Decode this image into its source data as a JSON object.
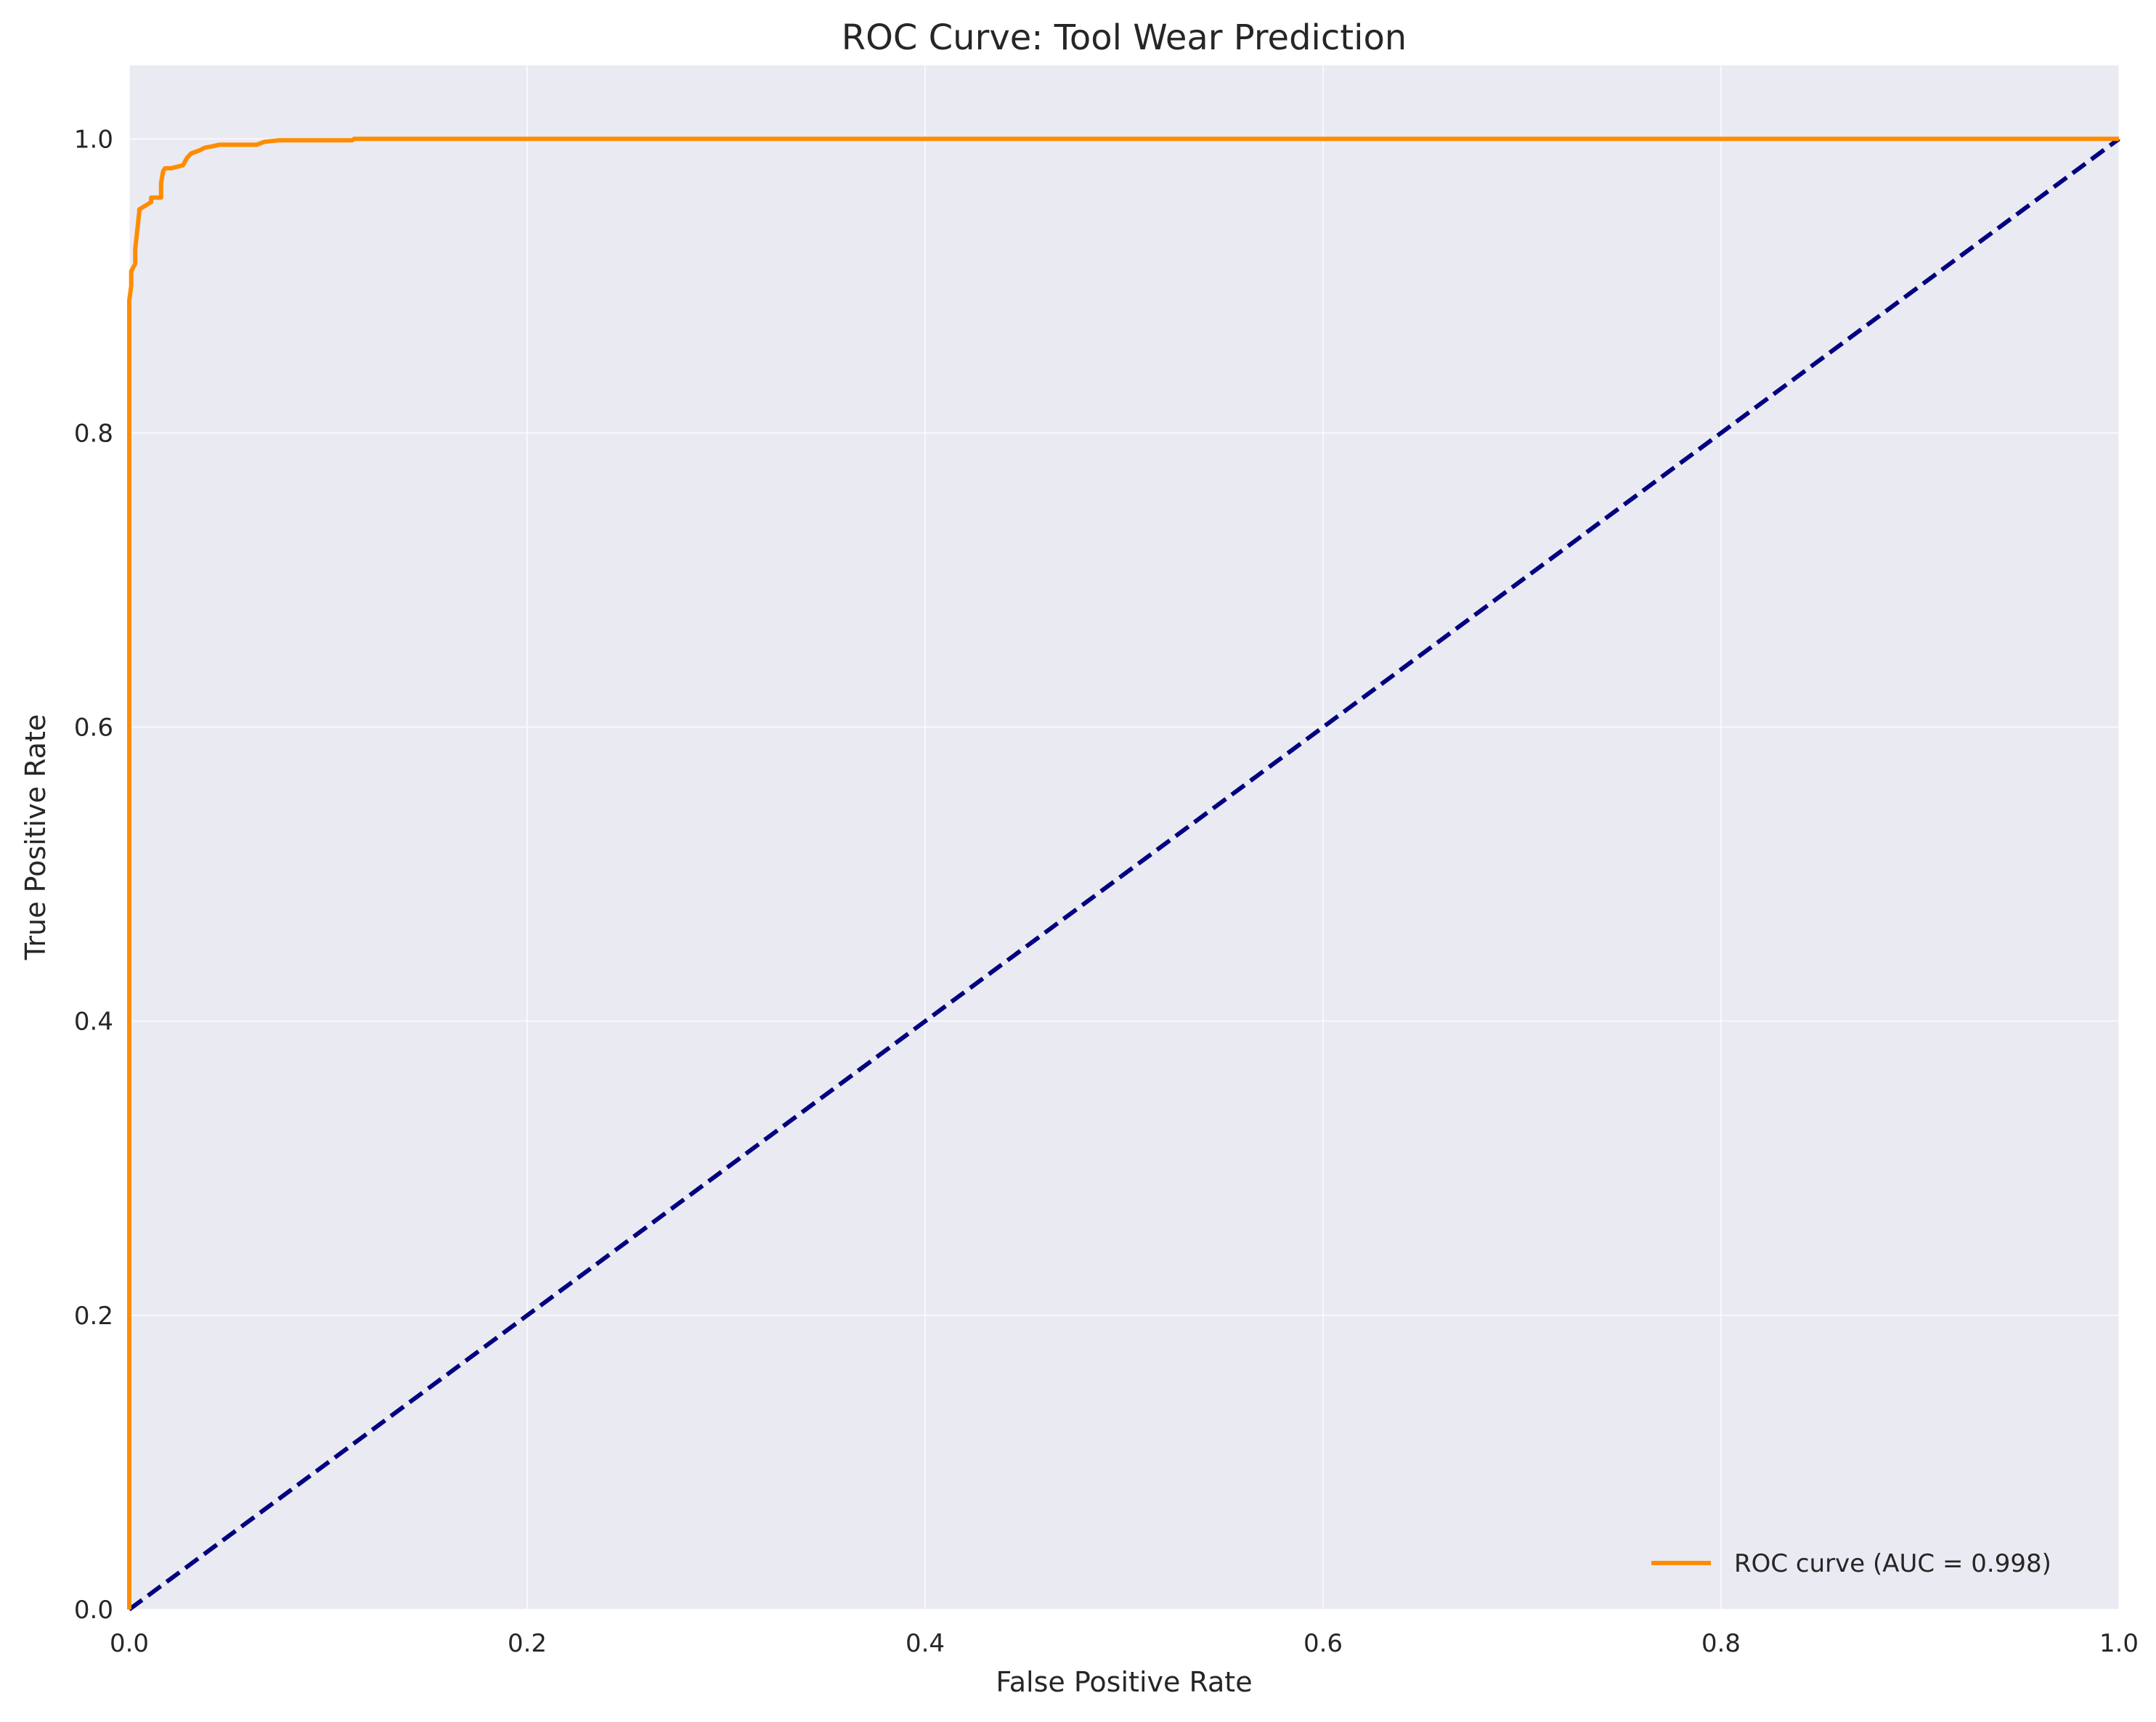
{
  "chart_data": {
    "type": "line",
    "title": "ROC Curve: Tool Wear Prediction",
    "xlabel": "False Positive Rate",
    "ylabel": "True Positive Rate",
    "xlim": [
      0.0,
      1.0
    ],
    "ylim": [
      0.0,
      1.05
    ],
    "grid": true,
    "legend_placement": "lower right",
    "x_ticks": [
      "0.0",
      "0.2",
      "0.4",
      "0.6",
      "0.8",
      "1.0"
    ],
    "y_ticks": [
      "0.0",
      "0.2",
      "0.4",
      "0.6",
      "0.8",
      "1.0"
    ],
    "x_tick_values": [
      0.0,
      0.2,
      0.4,
      0.6,
      0.8,
      1.0
    ],
    "y_tick_values": [
      0.0,
      0.2,
      0.4,
      0.6,
      0.8,
      1.0
    ],
    "series": [
      {
        "name": "ROC curve (AUC = 0.998)",
        "color": "#ff8c00",
        "style": "solid",
        "x": [
          0.0,
          0.0,
          0.001,
          0.001,
          0.003,
          0.003,
          0.005,
          0.005,
          0.011,
          0.011,
          0.016,
          0.016,
          0.017,
          0.018,
          0.021,
          0.027,
          0.029,
          0.031,
          0.035,
          0.038,
          0.042,
          0.045,
          0.055,
          0.064,
          0.068,
          0.075,
          0.09,
          0.112,
          0.113,
          0.25,
          0.5,
          0.75,
          1.0
        ],
        "y": [
          0.0,
          0.89,
          0.9,
          0.91,
          0.915,
          0.925,
          0.95,
          0.952,
          0.957,
          0.96,
          0.96,
          0.97,
          0.978,
          0.98,
          0.98,
          0.982,
          0.987,
          0.99,
          0.992,
          0.994,
          0.995,
          0.996,
          0.996,
          0.996,
          0.998,
          0.999,
          0.999,
          0.999,
          1.0,
          1.0,
          1.0,
          1.0,
          1.0
        ]
      },
      {
        "name": "",
        "color": "#000080",
        "style": "dashed",
        "x": [
          0.0,
          1.0
        ],
        "y": [
          0.0,
          1.0
        ]
      }
    ]
  },
  "colors": {
    "plot_background": "#eaeaf2",
    "grid": "#ffffff",
    "text": "#262626"
  }
}
